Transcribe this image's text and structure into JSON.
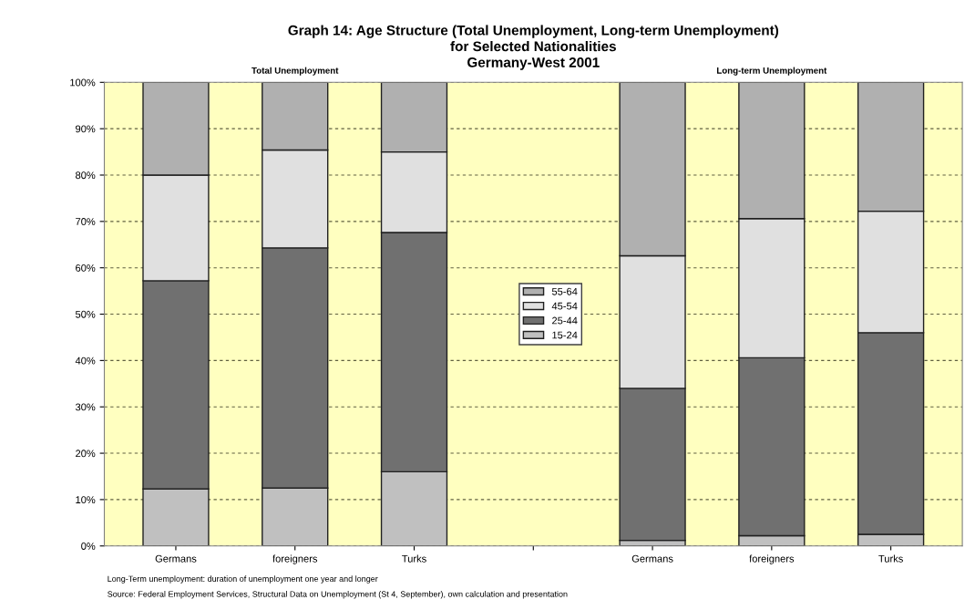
{
  "chart_data": {
    "type": "bar",
    "stacked": true,
    "title": "Graph 14: Age Structure (Total Unemployment, Long-term Unemployment)\nfor Selected Nationalities\nGermany-West 2001",
    "categories": [
      "Germans",
      "foreigners",
      "Turks",
      null,
      "Germans",
      "foreigners",
      "Turks"
    ],
    "series": [
      {
        "name": "15-24",
        "color": "#c0c0c0",
        "values": [
          12.3,
          12.5,
          16,
          null,
          1.2,
          2.2,
          2.5
        ]
      },
      {
        "name": "25-44",
        "color": "#707070",
        "values": [
          44.9,
          51.8,
          51.6,
          null,
          32.8,
          38.4,
          43.5
        ]
      },
      {
        "name": "45-54",
        "color": "#e0e0e0",
        "values": [
          22.8,
          21.1,
          17.4,
          null,
          28.6,
          30.0,
          26.2
        ]
      },
      {
        "name": "55-64",
        "color": "#b0b0b0",
        "values": [
          20,
          14.6,
          15,
          null,
          37.4,
          29.4,
          27.8
        ]
      }
    ],
    "ylim": [
      0,
      100
    ],
    "yticks": [
      {
        "value": 0,
        "label": "0%"
      },
      {
        "value": 10,
        "label": "10%"
      },
      {
        "value": 20,
        "label": "20%"
      },
      {
        "value": 30,
        "label": "30%"
      },
      {
        "value": 40,
        "label": "40%"
      },
      {
        "value": 50,
        "label": "50%"
      },
      {
        "value": 60,
        "label": "60%"
      },
      {
        "value": 70,
        "label": "70%"
      },
      {
        "value": 80,
        "label": "80%"
      },
      {
        "value": 90,
        "label": "90%"
      },
      {
        "value": 100,
        "label": "100%"
      }
    ],
    "grid": "y",
    "legend": "center",
    "annotations": [
      "Total Unemployment",
      "Long-term Unemployment",
      "Long-Term unemployment: duration of unemployment one year and longer",
      "Source: Federal Employment Services, Structural Data on Unemployment (St 4, September), own calculation and presentation"
    ]
  }
}
